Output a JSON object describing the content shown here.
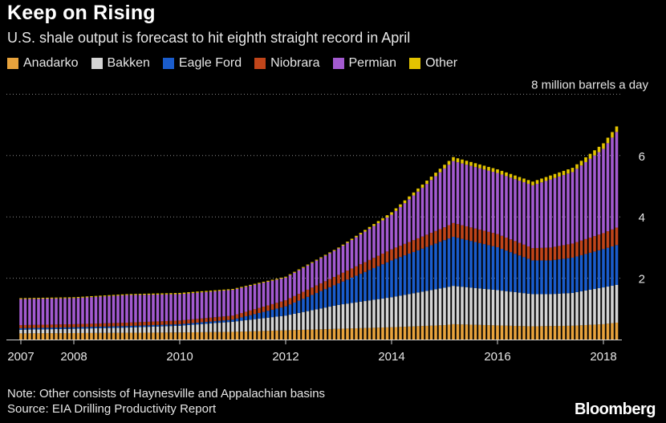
{
  "header": {
    "title": "Keep on Rising",
    "subtitle": "U.S. shale output is forecast to hit eighth straight record in April"
  },
  "footer": {
    "note": "Note: Other consists of Haynesville and Appalachian basins",
    "source": "Source: EIA Drilling Productivity Report",
    "brand": "Bloomberg"
  },
  "chart_data": {
    "type": "bar",
    "stacked": true,
    "unit_label": "8 million barrels a day",
    "ylim": [
      0,
      8
    ],
    "yticks": [
      2,
      4,
      6
    ],
    "ytick_labels": [
      "2",
      "4",
      "6"
    ],
    "grid": "dotted-horizontal",
    "legend_placement": "top",
    "x_tick_labels": [
      "2007",
      "2008",
      "2010",
      "2012",
      "2014",
      "2016",
      "2018"
    ],
    "series_keyframes": {
      "x": [
        "2007-01",
        "2008-01",
        "2009-01",
        "2010-01",
        "2011-01",
        "2012-01",
        "2013-01",
        "2014-01",
        "2015-01",
        "2015-03",
        "2016-01",
        "2016-09",
        "2017-01",
        "2017-06",
        "2018-01",
        "2018-04"
      ],
      "totals": [
        1.35,
        1.38,
        1.48,
        1.52,
        1.65,
        2.05,
        3.0,
        4.15,
        5.7,
        5.95,
        5.55,
        5.15,
        5.35,
        5.6,
        6.4,
        6.95
      ]
    },
    "series": [
      {
        "name": "Anadarko",
        "color": "#e8a33c",
        "values": [
          0.2,
          0.21,
          0.22,
          0.23,
          0.25,
          0.3,
          0.35,
          0.4,
          0.47,
          0.5,
          0.46,
          0.43,
          0.44,
          0.45,
          0.5,
          0.55
        ]
      },
      {
        "name": "Bakken",
        "color": "#d4d4d4",
        "values": [
          0.12,
          0.14,
          0.17,
          0.22,
          0.33,
          0.48,
          0.78,
          0.98,
          1.22,
          1.25,
          1.15,
          1.05,
          1.04,
          1.07,
          1.2,
          1.23
        ]
      },
      {
        "name": "Eagle Ford",
        "color": "#1a5ccc",
        "values": [
          0.05,
          0.05,
          0.05,
          0.05,
          0.07,
          0.3,
          0.7,
          1.2,
          1.55,
          1.6,
          1.4,
          1.1,
          1.1,
          1.15,
          1.25,
          1.3
        ]
      },
      {
        "name": "Niobrara",
        "color": "#c0451a",
        "values": [
          0.1,
          0.1,
          0.11,
          0.12,
          0.13,
          0.2,
          0.28,
          0.36,
          0.42,
          0.45,
          0.43,
          0.4,
          0.42,
          0.46,
          0.52,
          0.57
        ]
      },
      {
        "name": "Permian",
        "color": "#a35ad0",
        "values": [
          0.85,
          0.85,
          0.9,
          0.86,
          0.84,
          0.74,
          0.86,
          1.13,
          1.92,
          2.02,
          1.99,
          2.05,
          2.22,
          2.33,
          2.75,
          3.12
        ]
      },
      {
        "name": "Other",
        "color": "#e3c300",
        "values": [
          0.03,
          0.03,
          0.03,
          0.04,
          0.03,
          0.03,
          0.03,
          0.08,
          0.12,
          0.13,
          0.12,
          0.12,
          0.13,
          0.14,
          0.18,
          0.18
        ]
      }
    ]
  }
}
